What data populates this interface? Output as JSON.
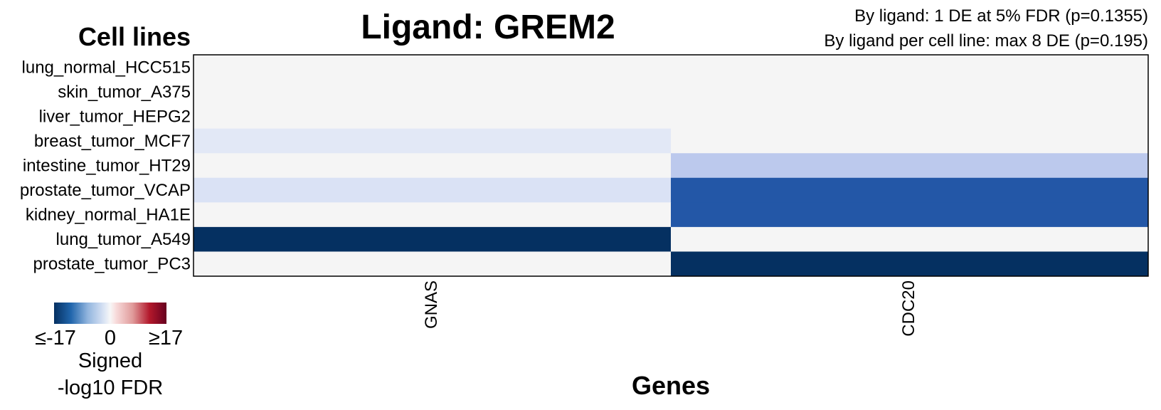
{
  "chart_data": {
    "type": "heatmap",
    "title": "Ligand: GREM2",
    "stats": [
      "By ligand: 1 DE at 5% FDR (p=0.1355)",
      "By ligand per cell line: max 8 DE (p=0.195)"
    ],
    "ylabel": "Cell lines",
    "xlabel": "Genes",
    "rows": [
      "lung_normal_HCC515",
      "skin_tumor_A375",
      "liver_tumor_HEPG2",
      "breast_tumor_MCF7",
      "intestine_tumor_HT29",
      "prostate_tumor_VCAP",
      "kidney_normal_HA1E",
      "lung_tumor_A549",
      "prostate_tumor_PC3"
    ],
    "columns": [
      "GNAS",
      "CDC20"
    ],
    "values": [
      [
        0,
        0
      ],
      [
        0,
        0
      ],
      [
        0,
        0
      ],
      [
        -1.5,
        0
      ],
      [
        0,
        -4
      ],
      [
        -2,
        -12
      ],
      [
        0,
        -12
      ],
      [
        -17,
        0
      ],
      [
        0,
        -17
      ]
    ],
    "color_range": [
      -17,
      17
    ],
    "colors": {
      "negative": "#053061",
      "neutral": "#f5f5f5",
      "positive": "#67001f",
      "frame": "#000000"
    },
    "legend": {
      "low_label": "≤-17",
      "mid_label": "0",
      "high_label": "≥17",
      "title_line1": "Signed",
      "title_line2": "-log10 FDR"
    }
  }
}
